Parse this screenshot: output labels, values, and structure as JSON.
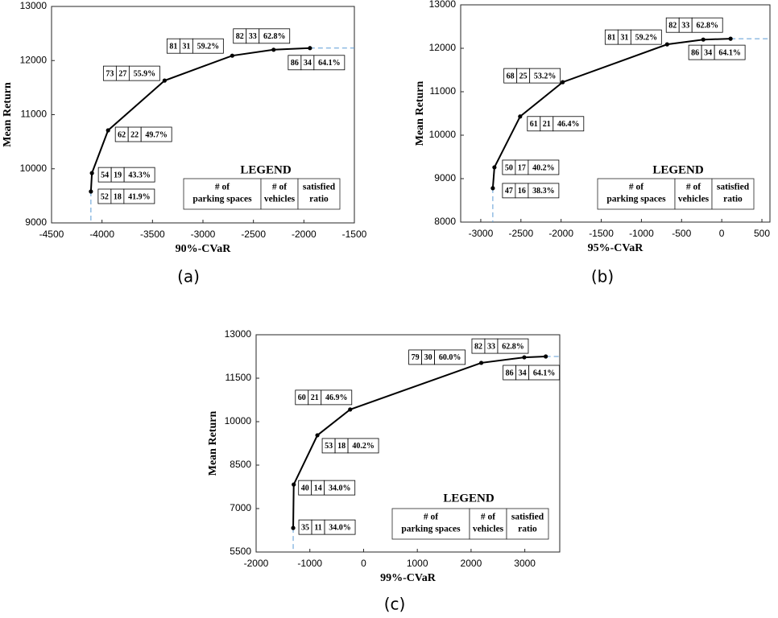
{
  "chart_data": [
    {
      "type": "line",
      "panel_label": "(a)",
      "xlabel": "90%-CVaR",
      "ylabel": "Mean Return",
      "color": "#000000",
      "guide_color": "#5b9bd5",
      "x": [
        -4110,
        -4100,
        -3940,
        -3380,
        -2710,
        -2300,
        -1940
      ],
      "values": [
        9580,
        9920,
        10710,
        11630,
        12090,
        12200,
        12230
      ],
      "parking_spaces": [
        52,
        54,
        62,
        73,
        81,
        82,
        86
      ],
      "vehicles": [
        18,
        19,
        22,
        27,
        31,
        33,
        34
      ],
      "satisfied_ratio": {
        "values": [
          41.9,
          43.3,
          49.7,
          55.9,
          59.2,
          62.8,
          64.1
        ],
        "value_labels": [
          "41.9%",
          "43.3%",
          "49.7%",
          "55.9%",
          "59.2%",
          "62.8%",
          "64.1%"
        ]
      },
      "xlim": [
        -4500,
        -1500
      ],
      "xticks": [
        -4500,
        -4000,
        -3500,
        -3000,
        -2500,
        -2000,
        -1500
      ],
      "ylim": [
        9000,
        13000
      ],
      "yticks": [
        9000,
        10000,
        11000,
        12000,
        13000
      ],
      "grid": false,
      "legend": {
        "title": "LEGEND",
        "headers": [
          [
            "# of",
            "parking spaces"
          ],
          [
            "# of",
            "vehicles"
          ],
          [
            "satisfied",
            "ratio"
          ]
        ]
      }
    },
    {
      "type": "line",
      "panel_label": "(b)",
      "xlabel": "95%-CVaR",
      "ylabel": "Mean Return",
      "color": "#000000",
      "guide_color": "#5b9bd5",
      "x": [
        -2850,
        -2830,
        -2510,
        -1980,
        -680,
        -230,
        110
      ],
      "values": [
        8780,
        9260,
        10430,
        11220,
        12090,
        12200,
        12220
      ],
      "parking_spaces": [
        47,
        50,
        61,
        68,
        81,
        82,
        86
      ],
      "vehicles": [
        16,
        17,
        21,
        25,
        31,
        33,
        34
      ],
      "satisfied_ratio": {
        "values": [
          38.3,
          40.2,
          46.4,
          53.2,
          59.2,
          62.8,
          64.1
        ],
        "value_labels": [
          "38.3%",
          "40.2%",
          "46.4%",
          "53.2%",
          "59.2%",
          "62.8%",
          "64.1%"
        ]
      },
      "xlim": [
        -3250,
        600
      ],
      "xticks": [
        -3000,
        -2500,
        -2000,
        -1500,
        -1000,
        -500,
        0,
        500
      ],
      "ylim": [
        8000,
        13000
      ],
      "yticks": [
        8000,
        9000,
        10000,
        11000,
        12000,
        13000
      ],
      "grid": false,
      "legend": {
        "title": "LEGEND",
        "headers": [
          [
            "# of",
            "parking spaces"
          ],
          [
            "# of",
            "vehicles"
          ],
          [
            "satisfied",
            "ratio"
          ]
        ]
      }
    },
    {
      "type": "line",
      "panel_label": "(c)",
      "xlabel": "99%-CVaR",
      "ylabel": "Mean Return",
      "color": "#000000",
      "guide_color": "#5b9bd5",
      "x": [
        -1310,
        -1300,
        -860,
        -250,
        2190,
        2990,
        3390
      ],
      "values": [
        6330,
        7830,
        9530,
        10420,
        12030,
        12220,
        12250
      ],
      "parking_spaces": [
        35,
        40,
        53,
        60,
        79,
        82,
        86
      ],
      "vehicles": [
        11,
        14,
        18,
        21,
        30,
        33,
        34
      ],
      "satisfied_ratio": {
        "values": [
          34.0,
          34.0,
          40.2,
          46.9,
          60.0,
          62.8,
          64.1
        ],
        "value_labels": [
          "34.0%",
          "34.0%",
          "40.2%",
          "46.9%",
          "60.0%",
          "62.8%",
          "64.1%"
        ]
      },
      "xlim": [
        -2000,
        3650
      ],
      "xticks": [
        -2000,
        -1000,
        0,
        1000,
        2000,
        3000
      ],
      "ylim": [
        5500,
        13000
      ],
      "yticks": [
        5500,
        7000,
        8500,
        10000,
        11500,
        13000
      ],
      "grid": false,
      "legend": {
        "title": "LEGEND",
        "headers": [
          [
            "# of",
            "parking spaces"
          ],
          [
            "# of",
            "vehicles"
          ],
          [
            "satisfied",
            "ratio"
          ]
        ]
      }
    }
  ]
}
